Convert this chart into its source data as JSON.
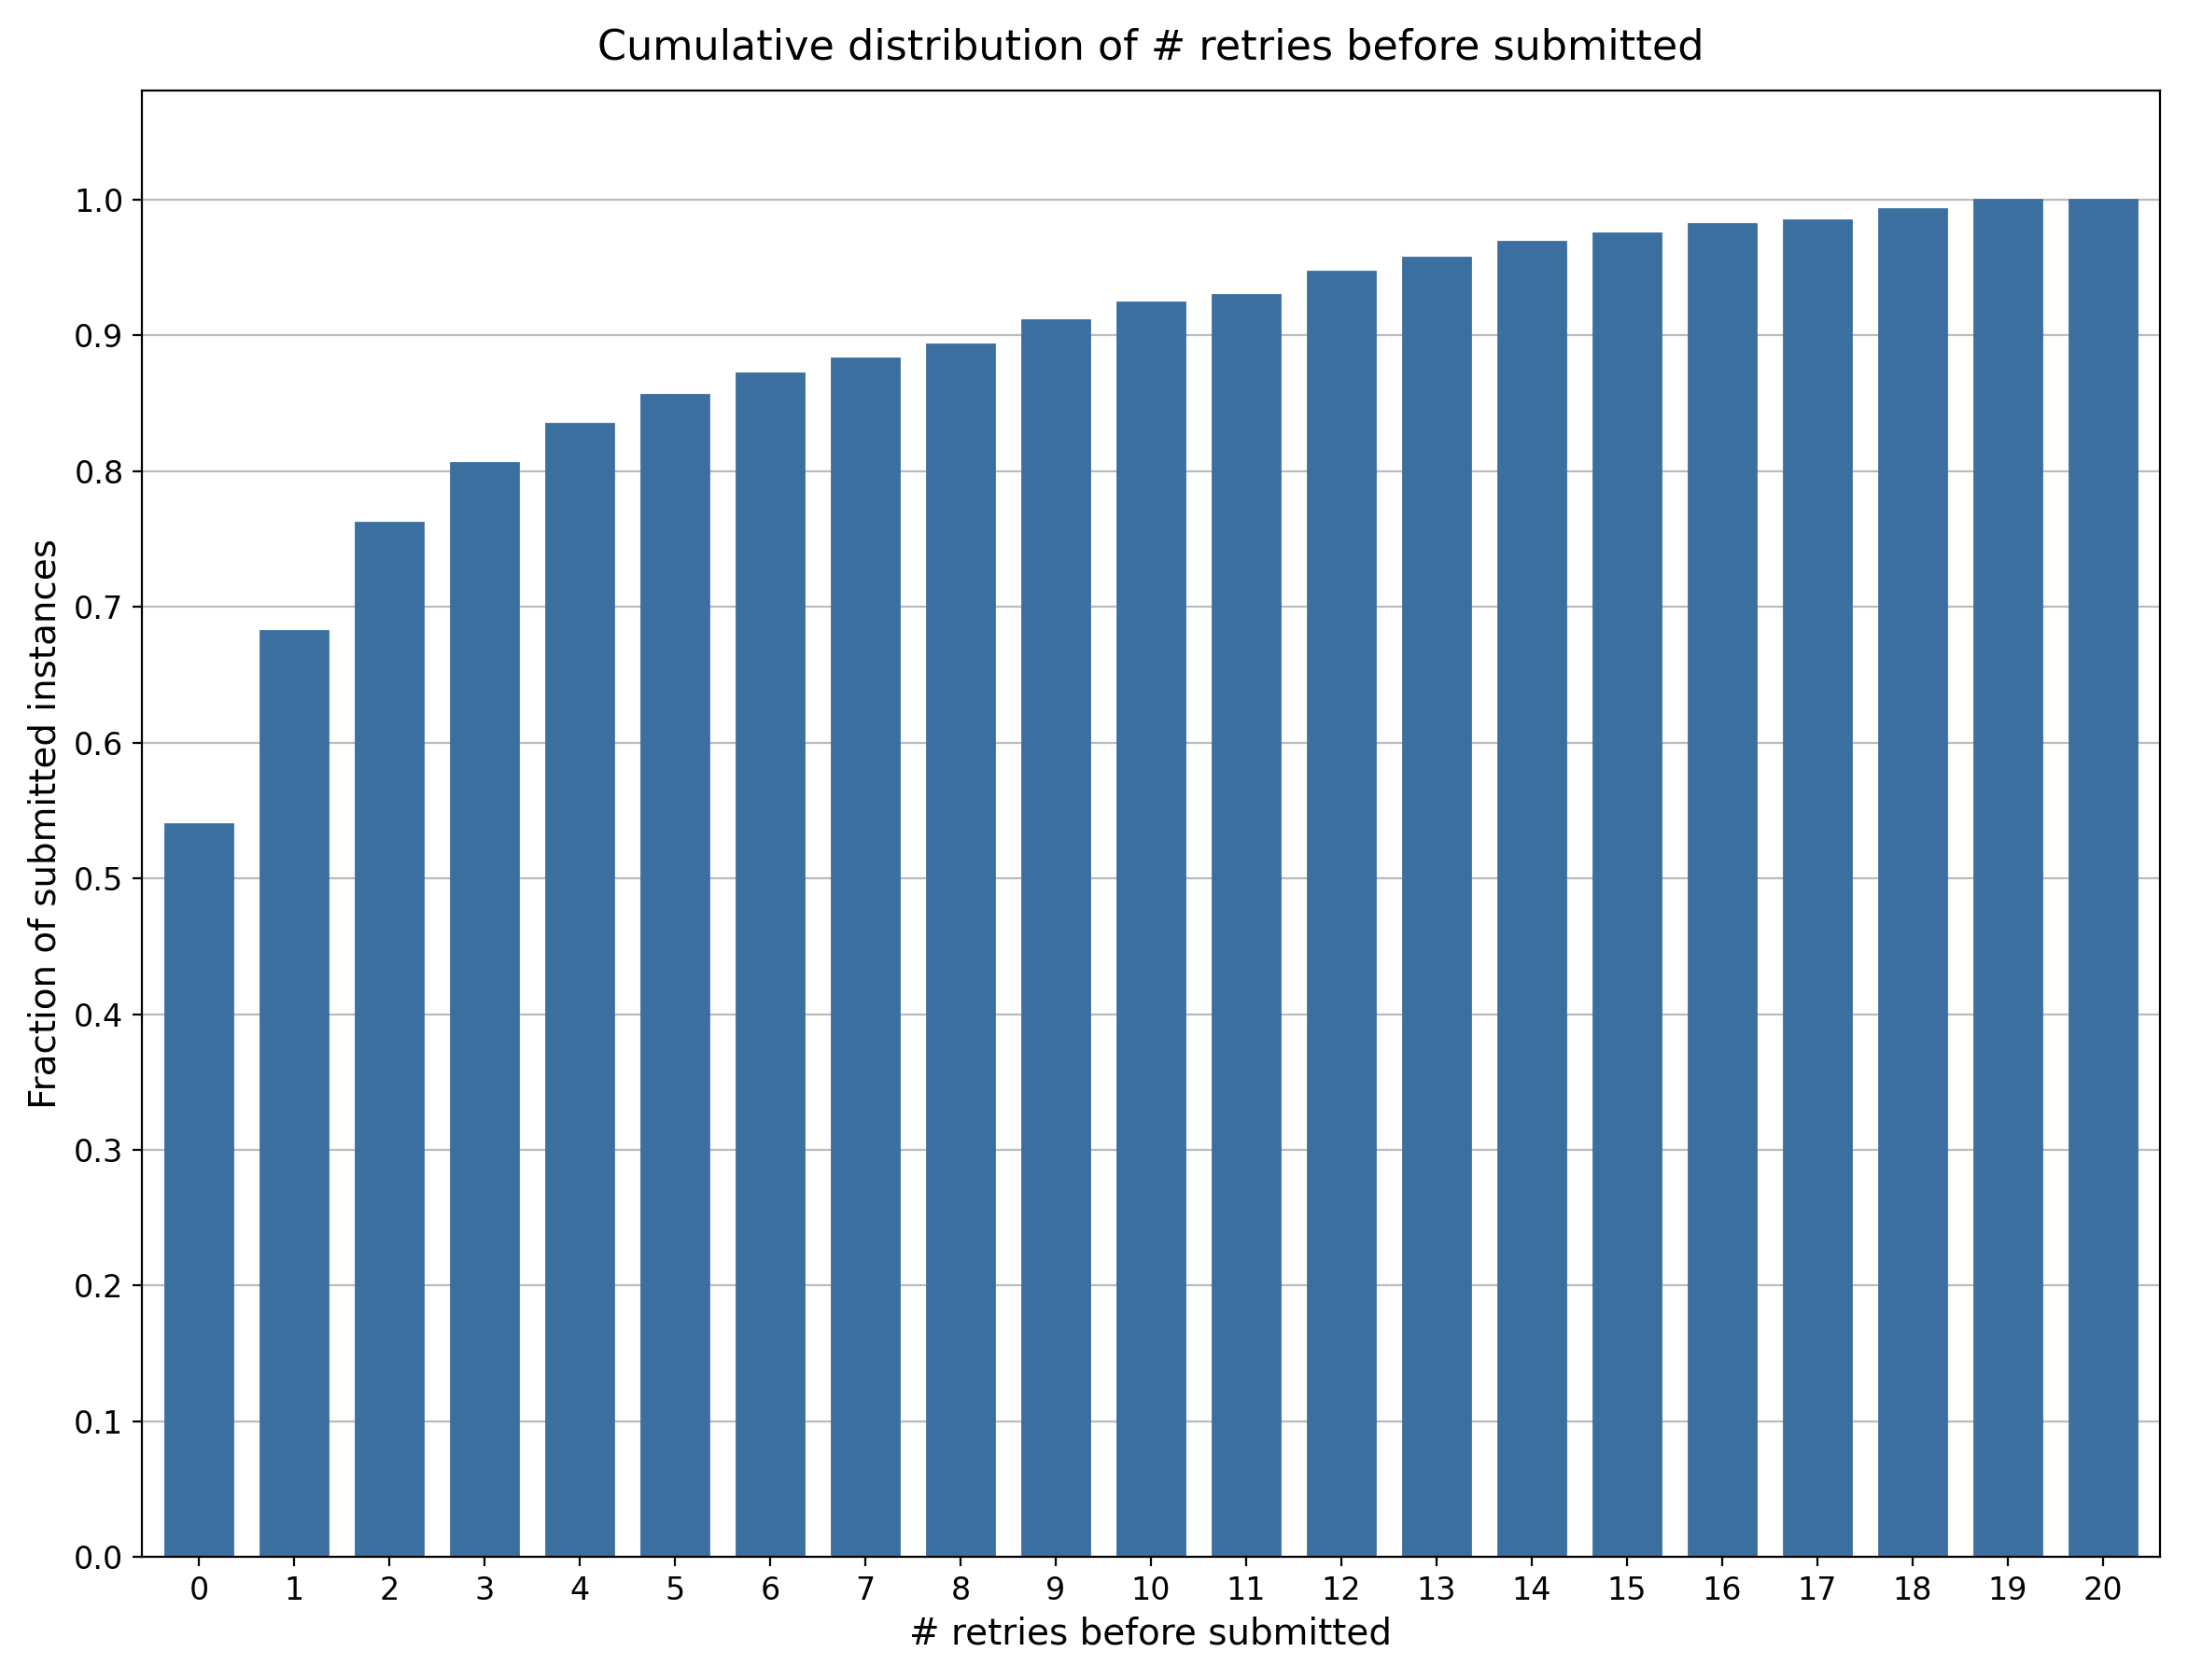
{
  "title": "Cumulative distribution of # retries before submitted",
  "xlabel": "# retries before submitted",
  "ylabel": "Fraction of submitted instances",
  "bar_color": "#3b6fa0",
  "categories": [
    0,
    1,
    2,
    3,
    4,
    5,
    6,
    7,
    8,
    9,
    10,
    11,
    12,
    13,
    14,
    15,
    16,
    17,
    18,
    19,
    20
  ],
  "values": [
    0.54,
    0.682,
    0.762,
    0.806,
    0.835,
    0.856,
    0.872,
    0.883,
    0.893,
    0.911,
    0.924,
    0.93,
    0.947,
    0.957,
    0.969,
    0.975,
    0.982,
    0.985,
    0.993,
    1.0,
    1.0
  ],
  "ylim": [
    0.0,
    1.08
  ],
  "yticks": [
    0.0,
    0.1,
    0.2,
    0.3,
    0.4,
    0.5,
    0.6,
    0.7,
    0.8,
    0.9,
    1.0
  ],
  "grid_color": "#bbbbbb",
  "background_color": "#ffffff",
  "title_fontsize": 16,
  "label_fontsize": 14,
  "tick_fontsize": 12
}
